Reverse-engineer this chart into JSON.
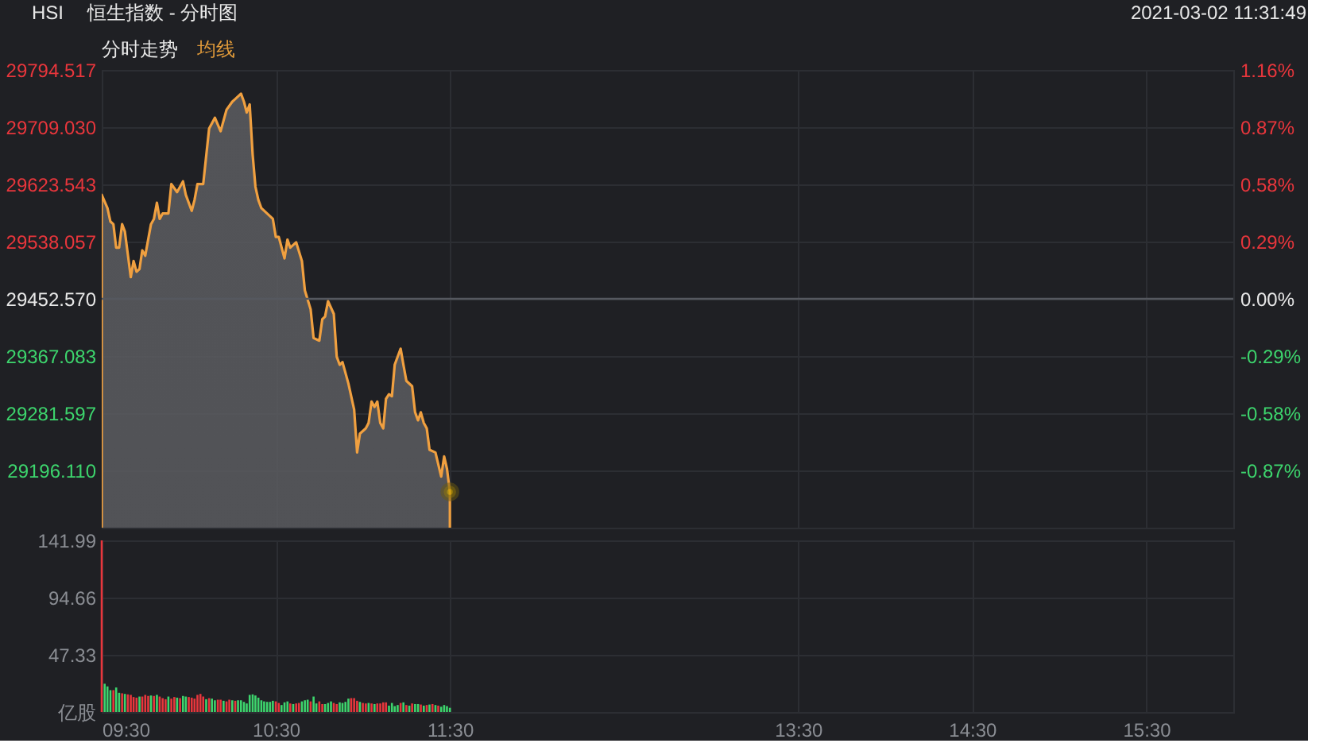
{
  "chart_data": [
    {
      "type": "area",
      "title": "HSI",
      "subtitle": "恒生指数 - 分时图",
      "annotations": [
        "2021-03-02 11:31:49",
        "分时走势",
        "均线"
      ],
      "x": [
        9.5,
        9.533,
        9.55,
        9.567,
        9.583,
        9.6,
        9.617,
        9.633,
        9.667,
        9.683,
        9.7,
        9.717,
        9.733,
        9.75,
        9.783,
        9.8,
        9.817,
        9.833,
        9.85,
        9.883,
        9.9,
        9.933,
        9.95,
        9.967,
        9.983,
        10.017,
        10.033,
        10.05,
        10.083,
        10.117,
        10.15,
        10.183,
        10.217,
        10.25,
        10.267,
        10.3,
        10.317,
        10.333,
        10.35,
        10.367,
        10.383,
        10.4,
        10.417,
        10.45,
        10.483,
        10.5,
        10.517,
        10.55,
        10.567,
        10.583,
        10.617,
        10.65,
        10.667,
        10.7,
        10.717,
        10.75,
        10.767,
        10.783,
        10.8,
        10.833,
        10.85,
        10.867,
        10.883,
        10.917,
        10.95,
        10.967,
        10.983,
        11.017,
        11.033,
        11.05,
        11.067,
        11.083,
        11.1,
        11.117,
        11.133,
        11.15,
        11.167,
        11.183,
        11.217,
        11.233,
        11.25,
        11.283,
        11.3,
        11.317,
        11.333,
        11.35,
        11.367,
        11.383,
        11.417,
        11.45,
        11.467,
        11.483,
        11.5
      ],
      "series": [
        {
          "type": "area",
          "color": "#f0a040",
          "values": [
            29608,
            29588,
            29568,
            29564,
            29529,
            29529,
            29564,
            29553,
            29485,
            29509,
            29493,
            29497,
            29525,
            29517,
            29564,
            29572,
            29596,
            29572,
            29580,
            29580,
            29624,
            29612,
            29620,
            29628,
            29608,
            29584,
            29600,
            29624,
            29624,
            29707,
            29723,
            29703,
            29735,
            29747,
            29751,
            29759,
            29747,
            29731,
            29743,
            29668,
            29620,
            29600,
            29588,
            29580,
            29572,
            29545,
            29545,
            29513,
            29541,
            29529,
            29537,
            29509,
            29465,
            29437,
            29394,
            29390,
            29422,
            29426,
            29449,
            29430,
            29366,
            29354,
            29358,
            29326,
            29287,
            29223,
            29251,
            29259,
            29267,
            29299,
            29291,
            29299,
            29267,
            29259,
            29303,
            29310,
            29307,
            29354,
            29378,
            29354,
            29330,
            29322,
            29283,
            29271,
            29283,
            29267,
            29259,
            29227,
            29223,
            29187,
            29217,
            29199,
            29164
          ]
        },
        {
          "type": "scatter",
          "color": "#c8a000",
          "x": [
            11.5
          ],
          "values": [
            29164
          ]
        }
      ],
      "xlim": [
        9.5,
        16
      ],
      "xticks": [
        {
          "value": 9.5,
          "label": null
        },
        {
          "value": 10.5,
          "label": null
        },
        {
          "value": 11.5,
          "label": null
        },
        {
          "value": 13.5,
          "label": null
        },
        {
          "value": 14.5,
          "label": null
        },
        {
          "value": 15.5,
          "label": null
        }
      ],
      "ylim": [
        29110.623,
        29794.517
      ],
      "yticks": [
        {
          "value": 29794.517,
          "label": "29794.517"
        },
        {
          "value": 29709.03,
          "label": "29709.030"
        },
        {
          "value": 29623.543,
          "label": "29623.543"
        },
        {
          "value": 29538.057,
          "label": "29538.057"
        },
        {
          "value": 29452.57,
          "label": "29452.570"
        },
        {
          "value": 29367.083,
          "label": "29367.083"
        },
        {
          "value": 29281.597,
          "label": "29281.597"
        },
        {
          "value": 29196.11,
          "label": "29196.110"
        }
      ],
      "y2lim": [
        -1.16,
        1.16
      ],
      "y2ticks": [
        {
          "value": 1.16,
          "label": "1.16%"
        },
        {
          "value": 0.87,
          "label": "0.87%"
        },
        {
          "value": 0.58,
          "label": "0.58%"
        },
        {
          "value": 0.29,
          "label": "0.29%"
        },
        {
          "value": 0,
          "label": "0.00%"
        },
        {
          "value": -0.29,
          "label": "-0.29%"
        },
        {
          "value": -0.58,
          "label": "-0.58%"
        },
        {
          "value": -0.87,
          "label": "-0.87%"
        }
      ],
      "ref_lines": [
        {
          "axis": "y2",
          "value": 0,
          "color": "#55585f"
        }
      ],
      "grid": true,
      "tick_labels": "y"
    },
    {
      "type": "bar",
      "x": [
        9.5,
        9.517,
        9.533,
        9.55,
        9.567,
        9.583,
        9.6,
        9.617,
        9.633,
        9.65,
        9.667,
        9.683,
        9.7,
        9.717,
        9.733,
        9.75,
        9.767,
        9.783,
        9.8,
        9.817,
        9.833,
        9.85,
        9.867,
        9.883,
        9.9,
        9.917,
        9.933,
        9.95,
        9.967,
        9.983,
        10,
        10.017,
        10.033,
        10.05,
        10.067,
        10.083,
        10.1,
        10.117,
        10.133,
        10.15,
        10.167,
        10.183,
        10.2,
        10.217,
        10.233,
        10.25,
        10.267,
        10.283,
        10.3,
        10.317,
        10.333,
        10.35,
        10.367,
        10.383,
        10.4,
        10.417,
        10.433,
        10.45,
        10.467,
        10.483,
        10.5,
        10.517,
        10.533,
        10.55,
        10.567,
        10.583,
        10.6,
        10.617,
        10.633,
        10.65,
        10.667,
        10.683,
        10.7,
        10.717,
        10.733,
        10.75,
        10.767,
        10.783,
        10.8,
        10.817,
        10.833,
        10.85,
        10.867,
        10.883,
        10.9,
        10.917,
        10.933,
        10.95,
        10.967,
        10.983,
        11,
        11.017,
        11.033,
        11.05,
        11.067,
        11.083,
        11.1,
        11.117,
        11.133,
        11.15,
        11.167,
        11.183,
        11.2,
        11.217,
        11.233,
        11.25,
        11.267,
        11.283,
        11.3,
        11.317,
        11.333,
        11.35,
        11.367,
        11.383,
        11.4,
        11.417,
        11.433,
        11.45,
        11.467,
        11.483,
        11.5
      ],
      "values": [
        141.99,
        23.4,
        21.2,
        18.1,
        18.1,
        20.3,
        15.9,
        15.5,
        15.0,
        14.6,
        14.2,
        12.4,
        11.9,
        12.8,
        12.8,
        14.2,
        13.3,
        13.7,
        13.3,
        14.2,
        12.8,
        11.5,
        10.6,
        12.8,
        11.1,
        12.4,
        11.9,
        11.5,
        13.3,
        12.8,
        12.4,
        11.9,
        11.1,
        14.2,
        15.0,
        12.8,
        10.6,
        11.5,
        11.1,
        9.7,
        10.2,
        10.2,
        9.3,
        8.8,
        10.2,
        9.7,
        9.3,
        9.7,
        9.7,
        8.4,
        7.1,
        14.2,
        14.6,
        13.7,
        11.9,
        9.7,
        8.8,
        8.4,
        8.4,
        9.3,
        8.8,
        7.5,
        5.8,
        8.0,
        8.8,
        7.1,
        6.6,
        7.1,
        7.5,
        8.8,
        9.7,
        10.2,
        8.8,
        12.8,
        7.1,
        8.8,
        6.6,
        6.6,
        7.5,
        8.8,
        7.5,
        6.6,
        8.0,
        7.5,
        8.4,
        11.1,
        11.5,
        11.5,
        9.3,
        8.4,
        7.5,
        7.1,
        7.5,
        7.1,
        6.6,
        7.1,
        7.1,
        8.0,
        8.0,
        5.3,
        7.5,
        4.9,
        5.8,
        7.5,
        8.0,
        5.8,
        5.3,
        7.1,
        6.6,
        6.6,
        6.2,
        5.3,
        5.8,
        6.2,
        6.6,
        5.8,
        5.3,
        4.4,
        5.8,
        4.9,
        3.5
      ],
      "colors": [
        "#e8363c",
        "#3dd56d",
        "#3dd56d",
        "#3dd56d",
        "#e8363c",
        "#3dd56d",
        "#3dd56d",
        "#e8363c",
        "#3dd56d",
        "#e8363c",
        "#e8363c",
        "#e8363c",
        "#e8363c",
        "#3dd56d",
        "#e8363c",
        "#e8363c",
        "#e8363c",
        "#3dd56d",
        "#e8363c",
        "#3dd56d",
        "#e8363c",
        "#e8363c",
        "#e8363c",
        "#3dd56d",
        "#e8363c",
        "#e8363c",
        "#3dd56d",
        "#e8363c",
        "#3dd56d",
        "#3dd56d",
        "#e8363c",
        "#e8363c",
        "#e8363c",
        "#e8363c",
        "#e8363c",
        "#e8363c",
        "#3dd56d",
        "#e8363c",
        "#3dd56d",
        "#3dd56d",
        "#e8363c",
        "#e8363c",
        "#3dd56d",
        "#e8363c",
        "#e8363c",
        "#3dd56d",
        "#e8363c",
        "#3dd56d",
        "#3dd56d",
        "#3dd56d",
        "#3dd56d",
        "#3dd56d",
        "#3dd56d",
        "#3dd56d",
        "#3dd56d",
        "#3dd56d",
        "#3dd56d",
        "#3dd56d",
        "#3dd56d",
        "#3dd56d",
        "#e8363c",
        "#e8363c",
        "#3dd56d",
        "#3dd56d",
        "#3dd56d",
        "#e8363c",
        "#3dd56d",
        "#e8363c",
        "#e8363c",
        "#3dd56d",
        "#3dd56d",
        "#3dd56d",
        "#e8363c",
        "#3dd56d",
        "#3dd56d",
        "#e8363c",
        "#e8363c",
        "#3dd56d",
        "#3dd56d",
        "#3dd56d",
        "#e8363c",
        "#e8363c",
        "#3dd56d",
        "#3dd56d",
        "#3dd56d",
        "#3dd56d",
        "#e8363c",
        "#e8363c",
        "#e8363c",
        "#3dd56d",
        "#e8363c",
        "#e8363c",
        "#3dd56d",
        "#e8363c",
        "#3dd56d",
        "#e8363c",
        "#e8363c",
        "#e8363c",
        "#e8363c",
        "#3dd56d",
        "#3dd56d",
        "#3dd56d",
        "#3dd56d",
        "#e8363c",
        "#3dd56d",
        "#e8363c",
        "#3dd56d",
        "#e8363c",
        "#3dd56d",
        "#3dd56d",
        "#e8363c",
        "#3dd56d",
        "#e8363c",
        "#3dd56d",
        "#e8363c",
        "#3dd56d",
        "#e8363c",
        "#3dd56d",
        "#3dd56d",
        "#3dd56d",
        "#3dd56d"
      ],
      "xlim": [
        9.5,
        16
      ],
      "xticks": [
        {
          "value": 9.5,
          "label": "09:30"
        },
        {
          "value": 10.5,
          "label": "10:30"
        },
        {
          "value": 11.5,
          "label": "11:30"
        },
        {
          "value": 13.5,
          "label": "13:30"
        },
        {
          "value": 14.5,
          "label": "14:30"
        },
        {
          "value": 15.5,
          "label": "15:30"
        }
      ],
      "ylim": [
        0,
        141.99
      ],
      "yticks": [
        {
          "value": 0,
          "label": "亿股"
        },
        47.33,
        94.66,
        141.99
      ],
      "grid": true
    }
  ]
}
